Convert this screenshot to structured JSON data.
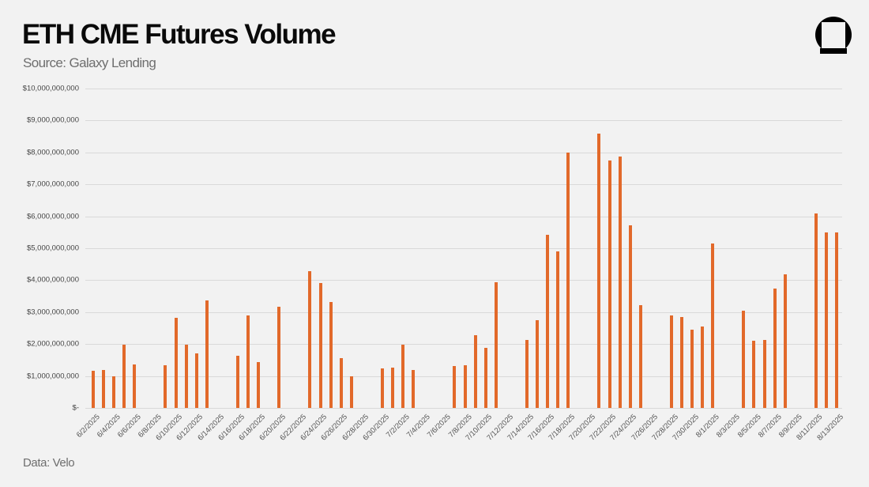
{
  "header": {
    "title": "ETH CME Futures Volume",
    "subtitle": "Source: Galaxy Lending"
  },
  "footer": {
    "note": "Data: Velo"
  },
  "logo": {
    "icon": "galaxy-logo-icon"
  },
  "colors": {
    "bar": "#E2692A",
    "grid": "#D9D9D9",
    "background": "#F2F2F2"
  },
  "chart_data": {
    "type": "bar",
    "title": "ETH CME Futures Volume",
    "subtitle": "Source: Galaxy Lending",
    "xlabel": "",
    "ylabel": "",
    "ylim": [
      0,
      10000000000
    ],
    "yticks": [
      "$-",
      "$1,000,000,000",
      "$2,000,000,000",
      "$3,000,000,000",
      "$4,000,000,000",
      "$5,000,000,000",
      "$6,000,000,000",
      "$7,000,000,000",
      "$8,000,000,000",
      "$9,000,000,000",
      "$10,000,000,000"
    ],
    "grid": true,
    "legend": null,
    "categories": [
      "6/2/2025",
      "6/3/2025",
      "6/4/2025",
      "6/5/2025",
      "6/6/2025",
      "6/7/2025",
      "6/8/2025",
      "6/9/2025",
      "6/10/2025",
      "6/11/2025",
      "6/12/2025",
      "6/13/2025",
      "6/14/2025",
      "6/15/2025",
      "6/16/2025",
      "6/17/2025",
      "6/18/2025",
      "6/19/2025",
      "6/20/2025",
      "6/21/2025",
      "6/22/2025",
      "6/23/2025",
      "6/24/2025",
      "6/25/2025",
      "6/26/2025",
      "6/27/2025",
      "6/28/2025",
      "6/29/2025",
      "6/30/2025",
      "7/1/2025",
      "7/2/2025",
      "7/3/2025",
      "7/4/2025",
      "7/5/2025",
      "7/6/2025",
      "7/7/2025",
      "7/8/2025",
      "7/9/2025",
      "7/10/2025",
      "7/11/2025",
      "7/12/2025",
      "7/13/2025",
      "7/14/2025",
      "7/15/2025",
      "7/16/2025",
      "7/17/2025",
      "7/18/2025",
      "7/19/2025",
      "7/20/2025",
      "7/21/2025",
      "7/22/2025",
      "7/23/2025",
      "7/24/2025",
      "7/25/2025",
      "7/26/2025",
      "7/27/2025",
      "7/28/2025",
      "7/29/2025",
      "7/30/2025",
      "7/31/2025",
      "8/1/2025",
      "8/2/2025",
      "8/3/2025",
      "8/4/2025",
      "8/5/2025",
      "8/6/2025",
      "8/7/2025",
      "8/8/2025",
      "8/9/2025",
      "8/10/2025",
      "8/11/2025",
      "8/12/2025",
      "8/13/2025"
    ],
    "values": [
      1160000000,
      1200000000,
      990000000,
      1980000000,
      1360000000,
      0,
      0,
      1330000000,
      2820000000,
      1980000000,
      1720000000,
      3370000000,
      0,
      0,
      1630000000,
      2890000000,
      1430000000,
      0,
      3160000000,
      0,
      0,
      4290000000,
      3910000000,
      3320000000,
      1570000000,
      1000000000,
      0,
      0,
      1240000000,
      1260000000,
      1990000000,
      1180000000,
      0,
      0,
      0,
      1320000000,
      1340000000,
      2280000000,
      1880000000,
      3930000000,
      0,
      0,
      2130000000,
      2750000000,
      5430000000,
      4890000000,
      8000000000,
      0,
      0,
      8580000000,
      7740000000,
      7860000000,
      5730000000,
      3230000000,
      0,
      0,
      2900000000,
      2850000000,
      2460000000,
      2560000000,
      5140000000,
      0,
      0,
      3040000000,
      2110000000,
      2130000000,
      3740000000,
      4190000000,
      0,
      0,
      6090000000,
      5500000000,
      5500000000
    ],
    "label_every": 2
  }
}
